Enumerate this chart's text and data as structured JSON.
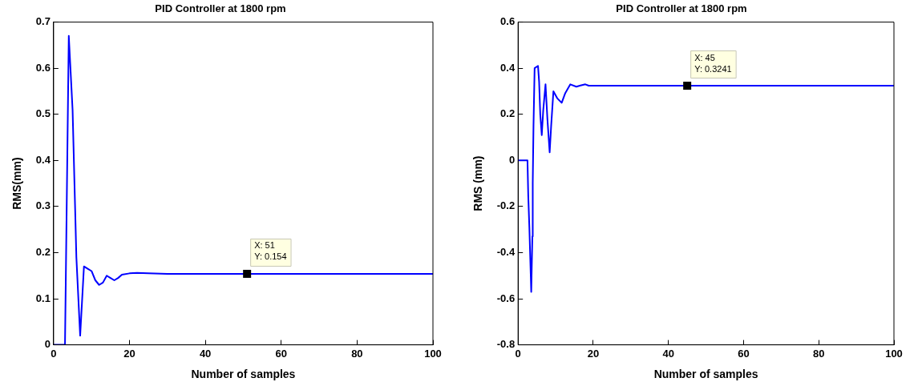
{
  "chart_data": [
    {
      "type": "line",
      "title": "PID Controller at 1800 rpm",
      "xlabel": "Number of samples",
      "ylabel": "RMS(mm)",
      "series": [
        {
          "color": "#0000ff",
          "x": [
            0,
            1,
            2,
            3,
            4,
            5,
            6,
            7,
            8,
            9,
            10,
            11,
            12,
            13,
            14,
            15,
            16,
            17,
            18,
            20,
            22,
            25,
            30,
            51,
            100
          ],
          "values": [
            0,
            0,
            0,
            0,
            0.67,
            0.51,
            0.19,
            0.02,
            0.17,
            0.165,
            0.16,
            0.14,
            0.13,
            0.135,
            0.15,
            0.145,
            0.14,
            0.145,
            0.152,
            0.155,
            0.156,
            0.155,
            0.154,
            0.154,
            0.154
          ]
        }
      ],
      "annotations": [
        {
          "text": "X: 51\nY: 0.154",
          "x": 51,
          "y": 0.154
        }
      ],
      "xlim": [
        0,
        100
      ],
      "xticks": [
        0,
        20,
        40,
        60,
        80,
        100
      ],
      "ylim": [
        0,
        0.7
      ],
      "yticks": [
        0,
        0.1,
        0.2,
        0.3,
        0.4,
        0.5,
        0.6,
        0.7
      ],
      "grid": false,
      "legend": false,
      "marker": "none",
      "line_style": "solid"
    },
    {
      "type": "line",
      "title": "PID Controller at 1800 rpm",
      "xlabel": "Number of samples",
      "ylabel": "RMS (mm)",
      "series": [
        {
          "color": "#0000ff",
          "x": [
            0,
            1,
            2,
            2.5,
            2.7,
            3.0,
            3.5,
            3.8,
            3.9,
            4.1,
            4.4,
            5.3,
            5.6,
            5.9,
            6.3,
            6.7,
            7.3,
            7.8,
            8.4,
            8.8,
            9.4,
            10.4,
            11.6,
            12.5,
            13.9,
            15.5,
            16.6,
            17.9,
            18.8,
            45,
            100
          ],
          "values": [
            0,
            0,
            0,
            0,
            -0.15,
            -0.29,
            -0.57,
            -0.33,
            -0.1,
            0.15,
            0.4,
            0.41,
            0.34,
            0.2,
            0.11,
            0.22,
            0.33,
            0.18,
            0.035,
            0.15,
            0.3,
            0.27,
            0.25,
            0.29,
            0.33,
            0.32,
            0.325,
            0.33,
            0.324,
            0.3241,
            0.3241
          ]
        }
      ],
      "annotations": [
        {
          "text": "X: 45\nY: 0.3241",
          "x": 45,
          "y": 0.3241
        }
      ],
      "xlim": [
        0,
        100
      ],
      "xticks": [
        0,
        20,
        40,
        60,
        80,
        100
      ],
      "ylim": [
        -0.8,
        0.6
      ],
      "yticks": [
        -0.8,
        -0.6,
        -0.4,
        -0.2,
        0,
        0.2,
        0.4,
        0.6
      ],
      "grid": false,
      "legend": false,
      "marker": "none",
      "line_style": "solid"
    }
  ]
}
